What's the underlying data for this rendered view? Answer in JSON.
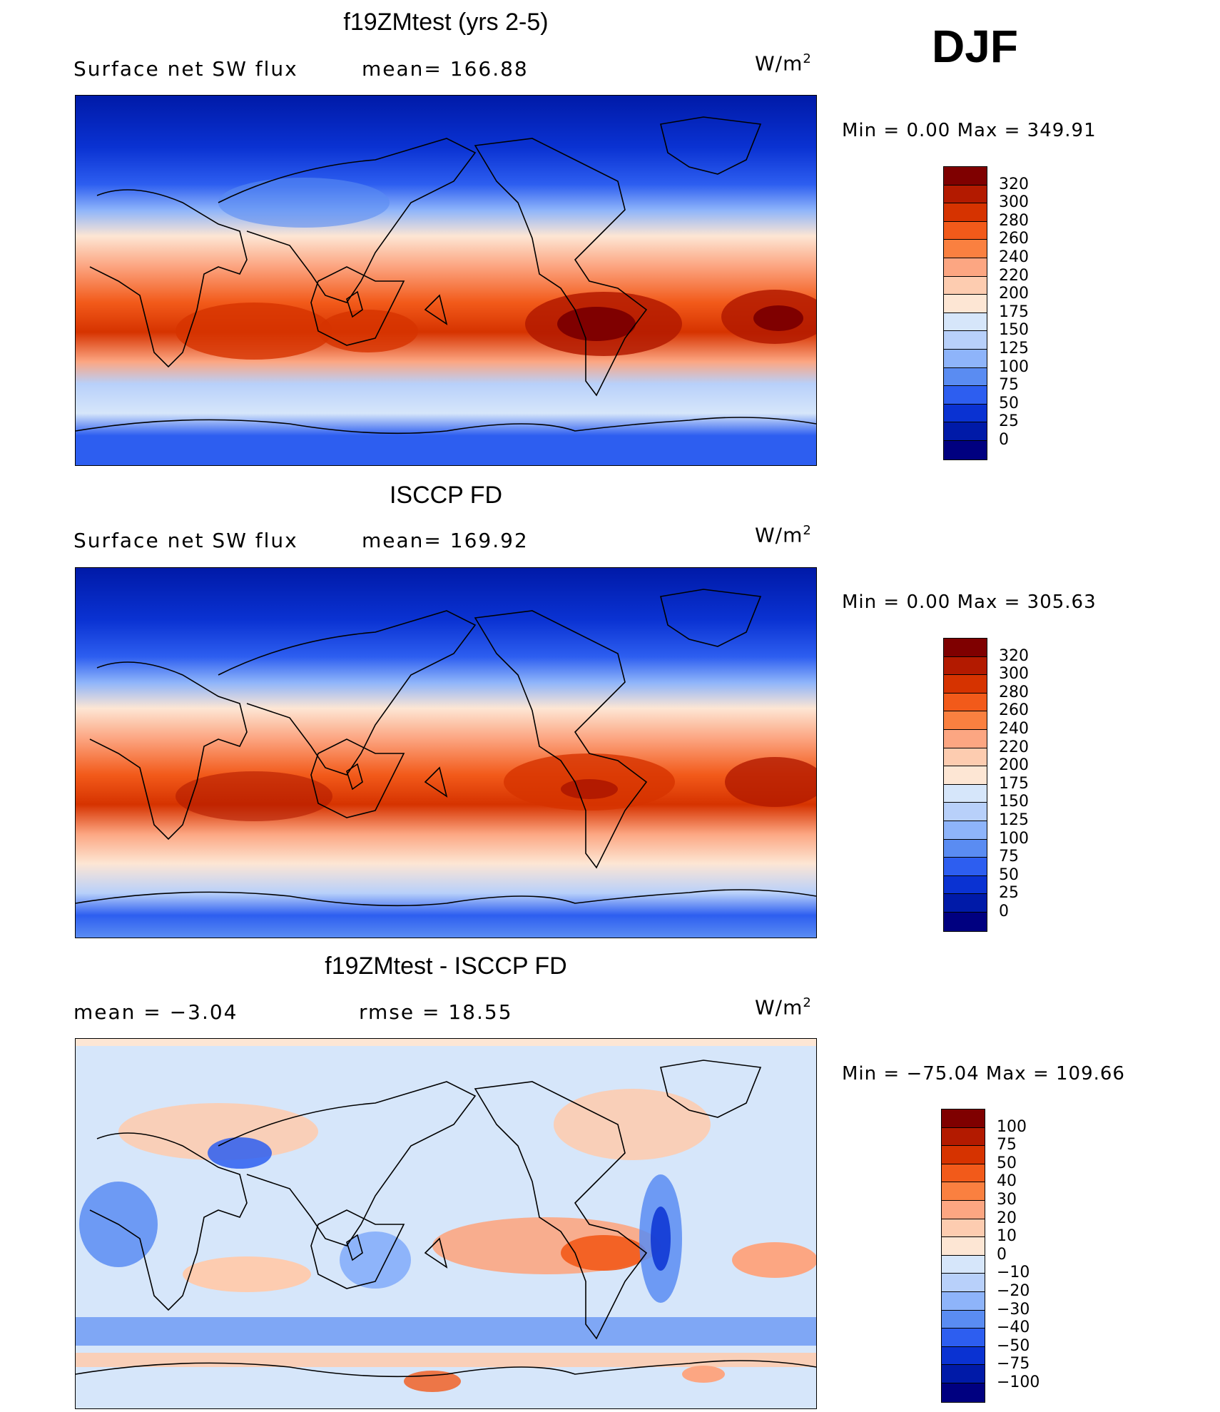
{
  "season": "DJF",
  "units": {
    "base": "W/m",
    "exp": "2"
  },
  "panels": [
    {
      "title": "f19ZMtest (yrs 2-5)",
      "left_text": "Surface net SW flux",
      "right_text": "mean= 166.88",
      "minmax": "Min =     0.00  Max  =  349.91",
      "colorbar": {
        "labels": [
          "320",
          "300",
          "280",
          "260",
          "240",
          "220",
          "200",
          "175",
          "150",
          "125",
          "100",
          "75",
          "50",
          "25",
          "0"
        ],
        "colors": [
          "#7f0000",
          "#b31a00",
          "#d63300",
          "#f25a1a",
          "#fa8040",
          "#fca682",
          "#fdccb0",
          "#fde6d4",
          "#d6e6fa",
          "#b8d0fa",
          "#8eb4fa",
          "#5a8cf2",
          "#2d5ef0",
          "#0a32d2",
          "#001aa8",
          "#000080"
        ]
      }
    },
    {
      "title": "ISCCP FD",
      "left_text": "Surface net SW flux",
      "right_text": "mean= 169.92",
      "minmax": "Min =     0.00  Max  =  305.63",
      "colorbar": {
        "labels": [
          "320",
          "300",
          "280",
          "260",
          "240",
          "220",
          "200",
          "175",
          "150",
          "125",
          "100",
          "75",
          "50",
          "25",
          "0"
        ],
        "colors": [
          "#7f0000",
          "#b31a00",
          "#d63300",
          "#f25a1a",
          "#fa8040",
          "#fca682",
          "#fdccb0",
          "#fde6d4",
          "#d6e6fa",
          "#b8d0fa",
          "#8eb4fa",
          "#5a8cf2",
          "#2d5ef0",
          "#0a32d2",
          "#001aa8",
          "#000080"
        ]
      }
    },
    {
      "title": "f19ZMtest - ISCCP FD",
      "left_text": "mean =    −3.04",
      "right_text": "rmse =    18.55",
      "minmax": "Min  = −75.04  Max  =  109.66",
      "colorbar": {
        "labels": [
          "100",
          "75",
          "50",
          "40",
          "30",
          "20",
          "10",
          "0",
          "−10",
          "−20",
          "−30",
          "−40",
          "−50",
          "−75",
          "−100"
        ],
        "colors": [
          "#7f0000",
          "#b31a00",
          "#d63300",
          "#f25a1a",
          "#fa8040",
          "#fca682",
          "#fdccb0",
          "#fde6d4",
          "#d6e6fa",
          "#b8d0fa",
          "#8eb4fa",
          "#5a8cf2",
          "#2d5ef0",
          "#0a32d2",
          "#001aa8",
          "#000080"
        ]
      }
    }
  ]
}
